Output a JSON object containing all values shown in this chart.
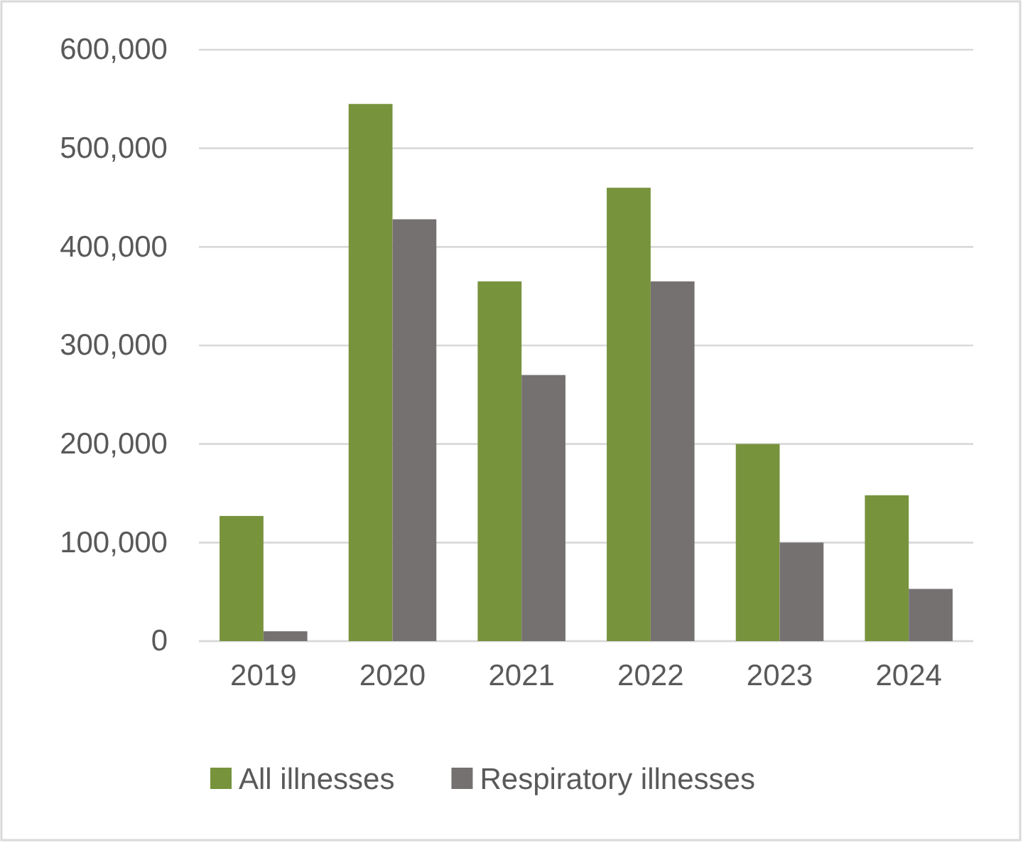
{
  "chart_data": {
    "type": "bar",
    "categories": [
      "2019",
      "2020",
      "2021",
      "2022",
      "2023",
      "2024"
    ],
    "series": [
      {
        "name": "All illnesses",
        "color": "#77933c",
        "values": [
          127000,
          545000,
          365000,
          460000,
          200000,
          148000
        ]
      },
      {
        "name": "Respiratory illnesses",
        "color": "#767171",
        "values": [
          10000,
          428000,
          270000,
          365000,
          100000,
          53000
        ]
      }
    ],
    "ylim": [
      0,
      600000
    ],
    "yticks": [
      {
        "value": 0,
        "label": "0"
      },
      {
        "value": 100000,
        "label": "100,000"
      },
      {
        "value": 200000,
        "label": "200,000"
      },
      {
        "value": 300000,
        "label": "300,000"
      },
      {
        "value": 400000,
        "label": "400,000"
      },
      {
        "value": 500000,
        "label": "500,000"
      },
      {
        "value": 600000,
        "label": "600,000"
      }
    ],
    "grid": "y",
    "legend": "bottom"
  }
}
